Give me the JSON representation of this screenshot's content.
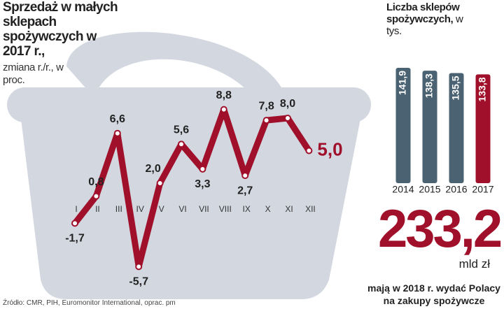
{
  "chart_data": [
    {
      "type": "line",
      "title": "Sprzedaż w małych sklepach spożywczych w 2017 r.,",
      "subtitle": "zmiana r./r., w proc.",
      "categories": [
        "I",
        "II",
        "III",
        "IV",
        "V",
        "VI",
        "VII",
        "VIII",
        "IX",
        "X",
        "XI",
        "XII"
      ],
      "values": [
        -1.7,
        0.8,
        6.6,
        -5.7,
        2.0,
        5.6,
        3.3,
        8.8,
        2.7,
        7.8,
        8.0,
        5.0
      ],
      "value_labels": [
        "-1,7",
        "0,8",
        "6,6",
        "-5,7",
        "2,0",
        "5,6",
        "3,3",
        "8,8",
        "2,7",
        "7,8",
        "8,0",
        "5,0"
      ],
      "color": "#a0102a"
    },
    {
      "type": "bar",
      "title": "Liczba sklepów spożywczych,",
      "subtitle": "w tys.",
      "categories": [
        "2014",
        "2015",
        "2016",
        "2017"
      ],
      "values": [
        141.9,
        138.3,
        135.5,
        133.8
      ],
      "value_labels": [
        "141,9",
        "138,3",
        "135,5",
        "133,8"
      ],
      "colors": [
        "#4a6272",
        "#4a6272",
        "#4a6272",
        "#a0102a"
      ]
    }
  ],
  "key_figure": {
    "value": "233,2",
    "unit": "mld zł",
    "caption": "mają w 2018 r. wydać Polacy na zakupy spożywcze"
  },
  "source": "Źródło: CMR, PIH, Euromonitor International, oprac. pm"
}
